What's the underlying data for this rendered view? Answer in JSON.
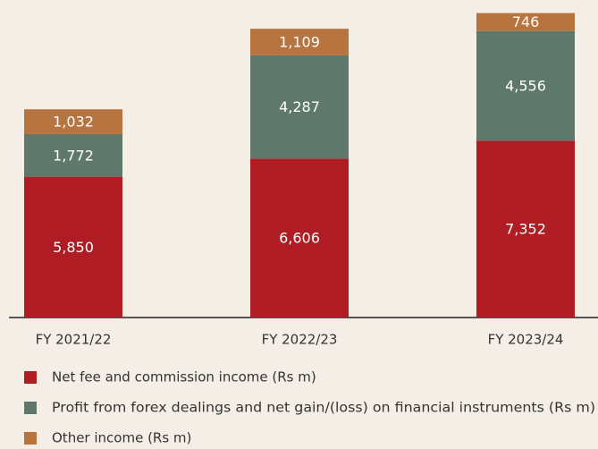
{
  "chart_data": {
    "type": "stacked_bar",
    "categories": [
      "FY 2021/22",
      "FY 2022/23",
      "FY 2023/24"
    ],
    "series": [
      {
        "name": "Net fee and commission income (Rs m)",
        "color": "#b01c23",
        "values": [
          5850,
          6606,
          7352
        ],
        "value_labels": [
          "5,850",
          "6,606",
          "7,352"
        ]
      },
      {
        "name": "Profit from forex dealings and net gain/(loss) on financial instruments (Rs m)",
        "color": "#5e786c",
        "values": [
          1772,
          4287,
          4556
        ],
        "value_labels": [
          "1,772",
          "4,287",
          "4,556"
        ]
      },
      {
        "name": "Other income (Rs m)",
        "color": "#b8743f",
        "values": [
          1032,
          1109,
          746
        ],
        "value_labels": [
          "1,032",
          "1,109",
          "746"
        ]
      }
    ]
  }
}
